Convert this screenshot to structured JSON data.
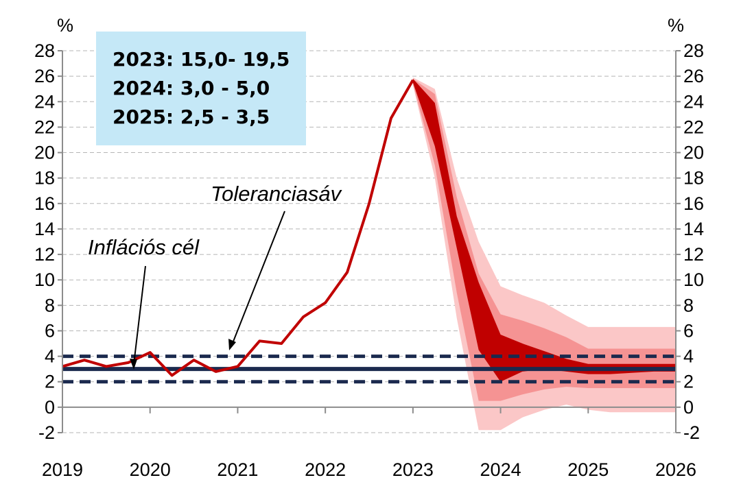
{
  "chart_data": {
    "type": "line",
    "y_unit_left": "%",
    "y_unit_right": "%",
    "ylim": [
      -2,
      28
    ],
    "yticks": [
      -2,
      0,
      2,
      4,
      6,
      8,
      10,
      12,
      14,
      16,
      18,
      20,
      22,
      24,
      26,
      28
    ],
    "ytick_labels": [
      "-2",
      "0",
      "2",
      "4",
      "6",
      "8",
      "10",
      "12",
      "14",
      "16",
      "18",
      "20",
      "22",
      "24",
      "26",
      "28"
    ],
    "xlim": [
      2019.0,
      2026.0
    ],
    "xticks": [
      2019,
      2020,
      2021,
      2022,
      2023,
      2024,
      2025,
      2026
    ],
    "xtick_labels": [
      "2019",
      "2020",
      "2021",
      "2022",
      "2023",
      "2024",
      "2025",
      "2026"
    ],
    "grid": "horizontal dashed",
    "inflation_target": 3,
    "tolerance_band": [
      2,
      4
    ],
    "annotations": {
      "target_label": "Inflációs cél",
      "band_label": "Toleranciasáv"
    },
    "projection_box": [
      "2023: 15,0- 19,5",
      "2024: 3,0 - 5,0",
      "2025: 2,5 - 3,5"
    ],
    "series": [
      {
        "x": [
          2019.0,
          2019.25,
          2019.5,
          2019.75,
          2020.0,
          2020.25,
          2020.5,
          2020.75,
          2021.0,
          2021.25,
          2021.5,
          2021.75,
          2022.0,
          2022.25,
          2022.5,
          2022.75,
          2023.0
        ],
        "values": [
          3.2,
          3.7,
          3.2,
          3.5,
          4.3,
          2.5,
          3.7,
          2.8,
          3.2,
          5.2,
          5.0,
          7.1,
          8.2,
          10.6,
          16.0,
          22.7,
          25.7
        ]
      }
    ],
    "fan": {
      "x": [
        2023.0,
        2023.25,
        2023.5,
        2023.75,
        2024.0,
        2024.25,
        2024.5,
        2024.75,
        2025.0,
        2025.25,
        2025.5,
        2025.75,
        2026.0
      ],
      "outer_low": [
        25.3,
        18.0,
        7.0,
        -1.8,
        -1.8,
        -0.8,
        -0.2,
        0.2,
        -0.2,
        -0.4,
        -0.4,
        -0.4,
        -0.4
      ],
      "outer_high": [
        25.9,
        25.0,
        18.0,
        13.0,
        9.5,
        8.8,
        8.2,
        7.2,
        6.3,
        6.3,
        6.3,
        6.3,
        6.3
      ],
      "mid_low": [
        25.4,
        19.0,
        9.0,
        0.5,
        0.5,
        1.0,
        1.4,
        1.6,
        1.5,
        1.5,
        1.5,
        1.5,
        1.5
      ],
      "mid_high": [
        25.8,
        24.6,
        16.5,
        10.5,
        7.3,
        6.8,
        6.2,
        5.5,
        4.6,
        4.6,
        4.6,
        4.6,
        4.6
      ],
      "inner_low": [
        25.5,
        20.5,
        12.5,
        4.5,
        2.0,
        2.8,
        3.0,
        2.8,
        2.6,
        2.6,
        2.7,
        2.8,
        2.8
      ],
      "inner_high": [
        25.8,
        23.9,
        15.0,
        9.8,
        5.7,
        5.0,
        4.4,
        3.8,
        3.4,
        3.4,
        3.4,
        3.4,
        3.4
      ]
    },
    "colors": {
      "actual": "#c00000",
      "fan_inner": "#c00000",
      "fan_mid": "#f59393",
      "fan_outer": "#fbc7c7",
      "target": "#1b2a4e",
      "band": "#1b2a4e",
      "box": "#c5e8f7"
    }
  }
}
